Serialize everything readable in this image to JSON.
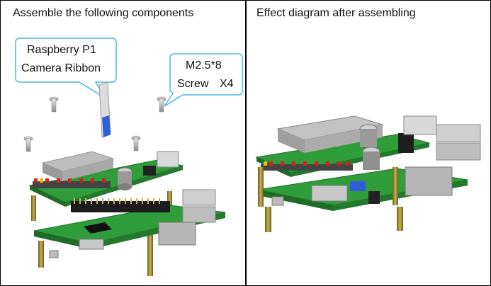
{
  "left_panel": {
    "title": "Assemble the following components",
    "ribbon_callout": {
      "line1": "Raspberry P1",
      "line2": "Camera Ribbon"
    },
    "screw_callout": {
      "line1": "M2.5*8",
      "line2_a": "Screw",
      "line2_b": "X4"
    }
  },
  "right_panel": {
    "title": "Effect diagram after assembling"
  },
  "colors": {
    "pcb_green": "#2f9e3a",
    "pcb_dark": "#1f6b28",
    "standoff_brass": "#a08a2e",
    "ribbon_blue": "#2f5fd8",
    "callout_border": "#4fb6e0"
  }
}
